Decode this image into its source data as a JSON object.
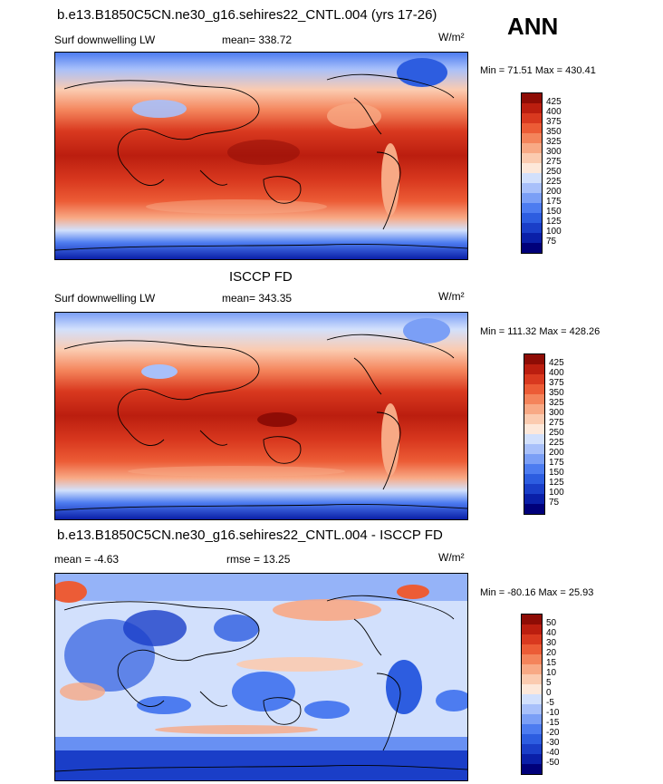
{
  "season": "ANN",
  "panels": [
    {
      "title": "b.e13.B1850C5CN.ne30_g16.sehires22_CNTL.004 (yrs 17-26)",
      "left_label": "Surf downwelling LW",
      "center_label": "mean= 338.72",
      "units": "W/m²",
      "minmax": "Min =  71.51 Max = 430.41"
    },
    {
      "title": "ISCCP FD",
      "left_label": "Surf downwelling LW",
      "center_label": "mean= 343.35",
      "units": "W/m²",
      "minmax": "Min = 111.32 Max = 428.26"
    },
    {
      "title": "b.e13.B1850C5CN.ne30_g16.sehires22_CNTL.004 - ISCCP FD",
      "left_label": "mean =  -4.63",
      "center_label": "rmse =  13.25",
      "units": "W/m²",
      "minmax": "Min = -80.16 Max =  25.93"
    }
  ],
  "colorbar_colors": [
    "#00007a",
    "#0a1fa8",
    "#1a3ec8",
    "#2d5de0",
    "#4d7cf0",
    "#7b9ff6",
    "#a8c0fa",
    "#d2e0fc",
    "#fde8da",
    "#fbcbb0",
    "#f8a985",
    "#f4845b",
    "#ec5c36",
    "#d9391f",
    "#bb1e0f",
    "#8e0c05"
  ],
  "chart_data": [
    {
      "type": "heatmap",
      "title": "b.e13.B1850C5CN.ne30_g16.sehires22_CNTL.004 (yrs 17-26)",
      "variable": "Surf downwelling LW",
      "units": "W/m²",
      "mean": 338.72,
      "min": 71.51,
      "max": 430.41,
      "colorbar_levels": [
        "75",
        "100",
        "125",
        "150",
        "175",
        "200",
        "225",
        "250",
        "275",
        "300",
        "325",
        "350",
        "375",
        "400",
        "425"
      ]
    },
    {
      "type": "heatmap",
      "title": "ISCCP FD",
      "variable": "Surf downwelling LW",
      "units": "W/m²",
      "mean": 343.35,
      "min": 111.32,
      "max": 428.26,
      "colorbar_levels": [
        "75",
        "100",
        "125",
        "150",
        "175",
        "200",
        "225",
        "250",
        "275",
        "300",
        "325",
        "350",
        "375",
        "400",
        "425"
      ]
    },
    {
      "type": "heatmap",
      "title": "b.e13.B1850C5CN.ne30_g16.sehires22_CNTL.004 - ISCCP FD",
      "variable": "difference",
      "units": "W/m²",
      "mean": -4.63,
      "rmse": 13.25,
      "min": -80.16,
      "max": 25.93,
      "colorbar_levels": [
        "-50",
        "-40",
        "-30",
        "-20",
        "-15",
        "-10",
        "-5",
        "0",
        "5",
        "10",
        "15",
        "20",
        "30",
        "40",
        "50"
      ]
    }
  ]
}
